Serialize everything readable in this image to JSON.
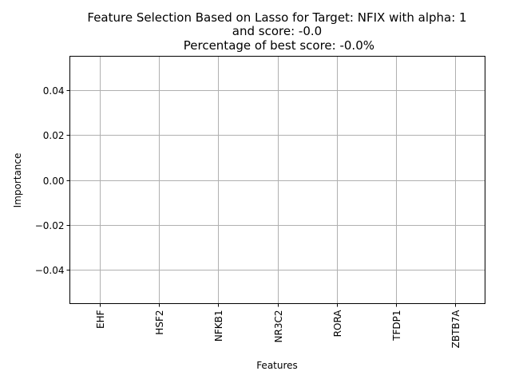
{
  "chart_data": {
    "type": "bar",
    "title_lines": [
      "Feature Selection Based on Lasso for Target: NFIX with alpha: 1",
      "and score: -0.0",
      " Percentage of best score: -0.0%"
    ],
    "xlabel": "Features",
    "ylabel": "Importance",
    "categories": [
      "EHF",
      "HSF2",
      "NFKB1",
      "NR3C2",
      "RORA",
      "TFDP1",
      "ZBTB7A"
    ],
    "values": [
      0,
      0,
      0,
      0,
      0,
      0,
      0
    ],
    "ylim": [
      -0.055,
      0.055
    ],
    "yticks": [
      -0.04,
      -0.02,
      0.0,
      0.02,
      0.04
    ],
    "ytick_labels": [
      "−0.04",
      "−0.02",
      "0.00",
      "0.02",
      "0.04"
    ],
    "grid": true,
    "colors": {
      "grid": "#b0b0b0",
      "axes": "#000000",
      "bar": "#1f77b4"
    }
  }
}
